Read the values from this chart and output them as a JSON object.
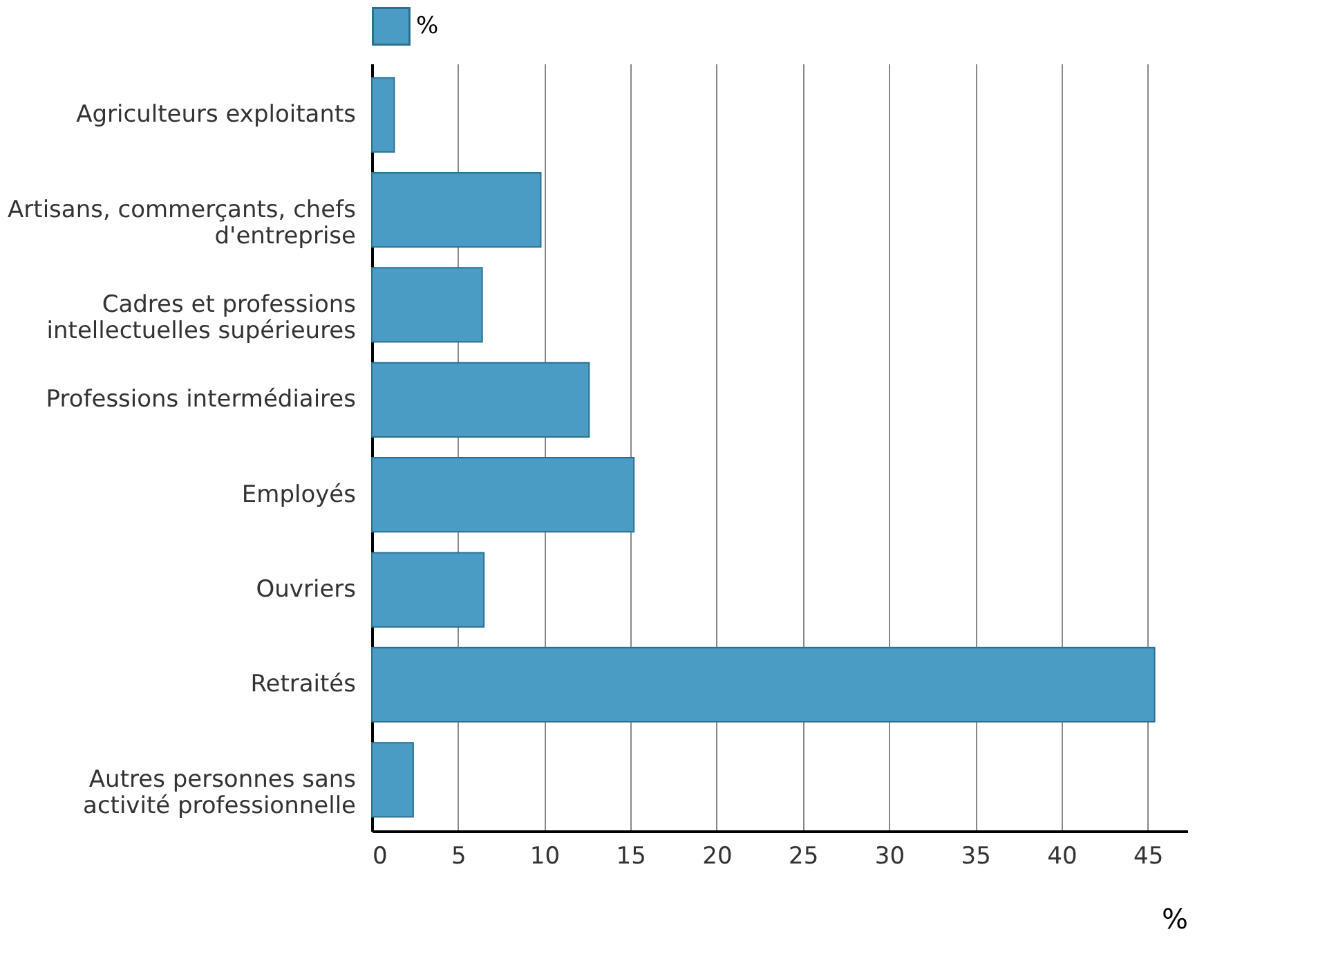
{
  "chart_data": {
    "type": "bar",
    "orientation": "horizontal",
    "xlabel": "%",
    "categories": [
      "Agriculteurs exploitants",
      "Artisans, commerçants, chefs d'entreprise",
      "Cadres et professions intellectuelles supérieures",
      "Professions intermédiaires",
      "Employés",
      "Ouvriers",
      "Retraités",
      "Autres personnes sans activité professionnelle"
    ],
    "series": [
      {
        "name": "%",
        "color": "#4a9cc4",
        "values": [
          1.3,
          9.8,
          6.4,
          12.6,
          15.2,
          6.5,
          45.4,
          2.4
        ]
      }
    ],
    "xlim": [
      0,
      47.3
    ],
    "xticks": [
      0,
      5,
      10,
      15,
      20,
      25,
      30,
      35,
      40,
      45
    ],
    "grid": "x",
    "legend": "top left"
  }
}
